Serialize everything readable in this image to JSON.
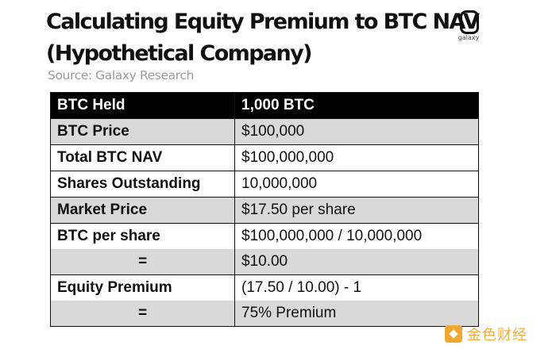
{
  "header": {
    "title_line1": "Calculating Equity Premium to BTC NAV",
    "title_line2": "(Hypothetical Company)",
    "source": "Source: Galaxy Research",
    "logo_text": "galaxy",
    "logo_icon": "galaxy-logo-icon"
  },
  "table": {
    "rows": [
      {
        "label": "BTC Held",
        "value": "1,000 BTC"
      },
      {
        "label": "BTC Price",
        "value": "$100,000"
      },
      {
        "label": "Total BTC NAV",
        "value": "$100,000,000"
      },
      {
        "label": "Shares Outstanding",
        "value": "10,000,000"
      },
      {
        "label": "Market Price",
        "value": "$17.50 per share"
      },
      {
        "label": "BTC per share",
        "value": "$100,000,000 / 10,000,000"
      },
      {
        "label": "=",
        "value": "$10.00"
      },
      {
        "label": "Equity Premium",
        "value": "(17.50 / 10.00) - 1"
      },
      {
        "label": "=",
        "value": "75% Premium"
      }
    ]
  },
  "watermark": {
    "text": "金色财经",
    "icon": "golden-finance-logo-icon"
  },
  "colors": {
    "header_bg": "#000000",
    "header_text": "#ffffff",
    "row_grey": "#d9d9d9",
    "row_white": "#ffffff",
    "watermark": "#f0a832"
  }
}
